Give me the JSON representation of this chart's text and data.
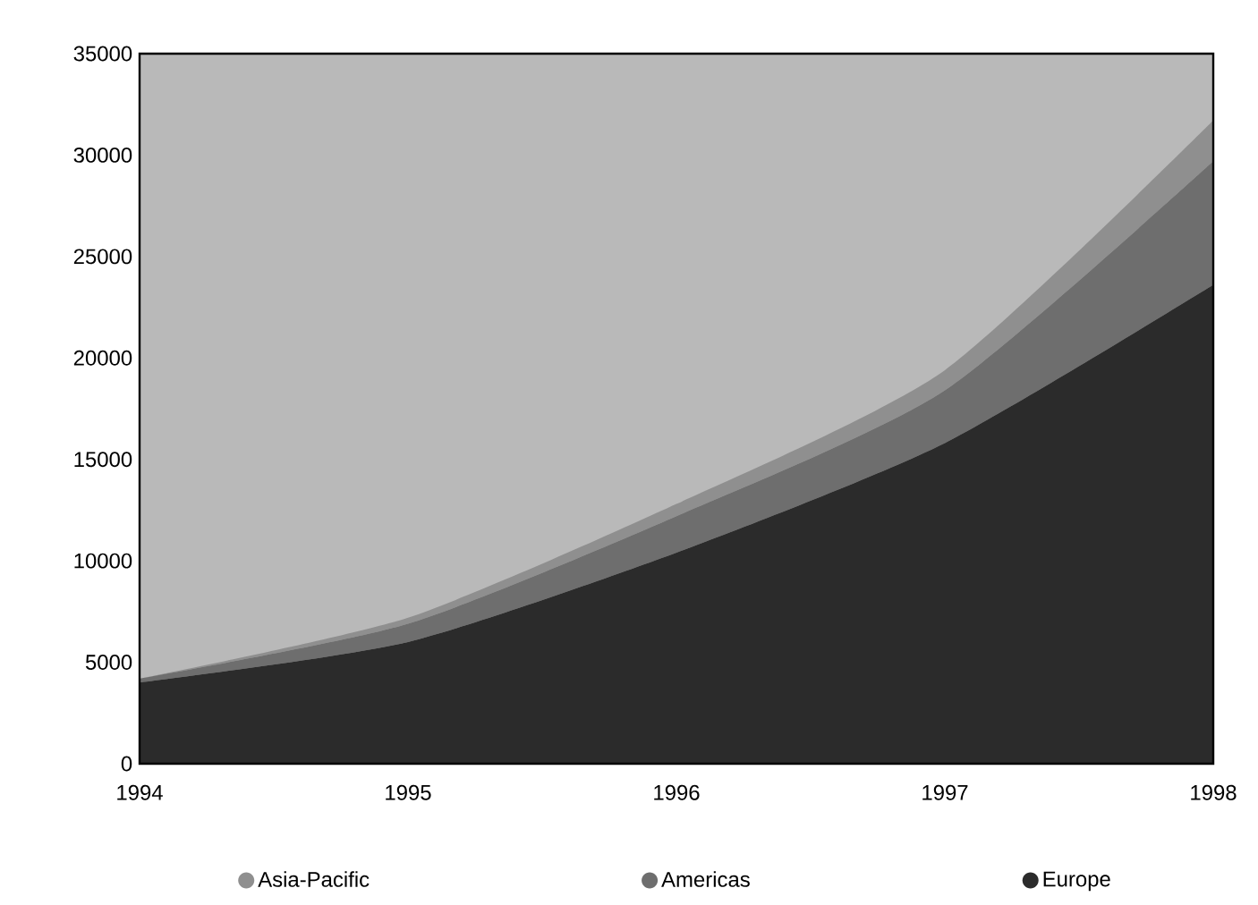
{
  "chart_data": {
    "type": "area",
    "stacked": true,
    "x": [
      1994,
      1995,
      1996,
      1997,
      1998
    ],
    "series": [
      {
        "name": "Europe",
        "color": "#2b2b2b",
        "values": [
          4000,
          6000,
          10400,
          15800,
          23600
        ]
      },
      {
        "name": "Americas",
        "color": "#6e6e6e",
        "values": [
          200,
          900,
          1800,
          2600,
          6100
        ]
      },
      {
        "name": "Asia-Pacific",
        "color": "#8f8f8f",
        "values": [
          0,
          300,
          600,
          1000,
          2000
        ]
      }
    ],
    "xlim": [
      1994,
      1998
    ],
    "xticks": [
      1994,
      1995,
      1996,
      1997,
      1998
    ],
    "ylim": [
      0,
      35000
    ],
    "yticks": [
      0,
      5000,
      10000,
      15000,
      20000,
      25000,
      30000,
      35000
    ],
    "legend": "bottom",
    "grid": false
  }
}
